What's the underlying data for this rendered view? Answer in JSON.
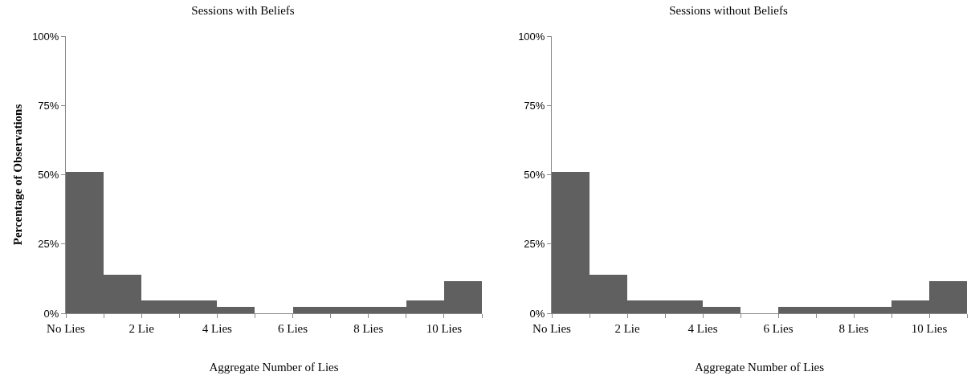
{
  "chart_data": [
    {
      "type": "histogram",
      "title": "Sessions with Beliefs",
      "xlabel": "Aggregate Number of Lies",
      "ylabel": "Percentage of Observations",
      "bins": [
        0,
        1,
        2,
        3,
        4,
        5,
        6,
        7,
        8,
        9,
        10,
        11
      ],
      "values": [
        51,
        14,
        4.5,
        4.5,
        2.3,
        0,
        2.3,
        2.3,
        2.3,
        4.5,
        11.5
      ],
      "color": "#606060",
      "xlim": [
        0,
        11
      ],
      "xticks": [
        {
          "value": 0,
          "label": "No Lies"
        },
        {
          "value": 1,
          "label": null
        },
        {
          "value": 2,
          "label": "2 Lie"
        },
        {
          "value": 3,
          "label": null
        },
        {
          "value": 4,
          "label": "4 Lies"
        },
        {
          "value": 5,
          "label": null
        },
        {
          "value": 6,
          "label": "6 Lies"
        },
        {
          "value": 7,
          "label": null
        },
        {
          "value": 8,
          "label": "8 Lies"
        },
        {
          "value": 9,
          "label": null
        },
        {
          "value": 10,
          "label": "10 Lies"
        },
        {
          "value": 11,
          "label": null
        }
      ],
      "ylim": [
        0,
        100
      ],
      "yticks": [
        {
          "value": 0,
          "label": "0%"
        },
        {
          "value": 25,
          "label": "25%"
        },
        {
          "value": 50,
          "label": "50%"
        },
        {
          "value": 75,
          "label": "75%"
        },
        {
          "value": 100,
          "label": "100%"
        }
      ],
      "grid": false
    },
    {
      "type": "histogram",
      "title": "Sessions without Beliefs",
      "xlabel": "Aggregate Number of Lies",
      "bins": [
        0,
        1,
        2,
        3,
        4,
        5,
        6,
        7,
        8,
        9,
        10,
        11
      ],
      "values": [
        51,
        14,
        4.5,
        4.5,
        2.3,
        0,
        2.3,
        2.3,
        2.3,
        4.5,
        11.5
      ],
      "color": "#606060",
      "xlim": [
        0,
        11
      ],
      "xticks": [
        {
          "value": 0,
          "label": "No Lies"
        },
        {
          "value": 1,
          "label": null
        },
        {
          "value": 2,
          "label": "2 Lie"
        },
        {
          "value": 3,
          "label": null
        },
        {
          "value": 4,
          "label": "4 Lies"
        },
        {
          "value": 5,
          "label": null
        },
        {
          "value": 6,
          "label": "6 Lies"
        },
        {
          "value": 7,
          "label": null
        },
        {
          "value": 8,
          "label": "8 Lies"
        },
        {
          "value": 9,
          "label": null
        },
        {
          "value": 10,
          "label": "10 Lies"
        },
        {
          "value": 11,
          "label": null
        }
      ],
      "ylim": [
        0,
        100
      ],
      "yticks": [
        {
          "value": 0,
          "label": "0%"
        },
        {
          "value": 25,
          "label": "25%"
        },
        {
          "value": 50,
          "label": "50%"
        },
        {
          "value": 75,
          "label": "75%"
        },
        {
          "value": 100,
          "label": "100%"
        }
      ],
      "grid": false
    }
  ]
}
